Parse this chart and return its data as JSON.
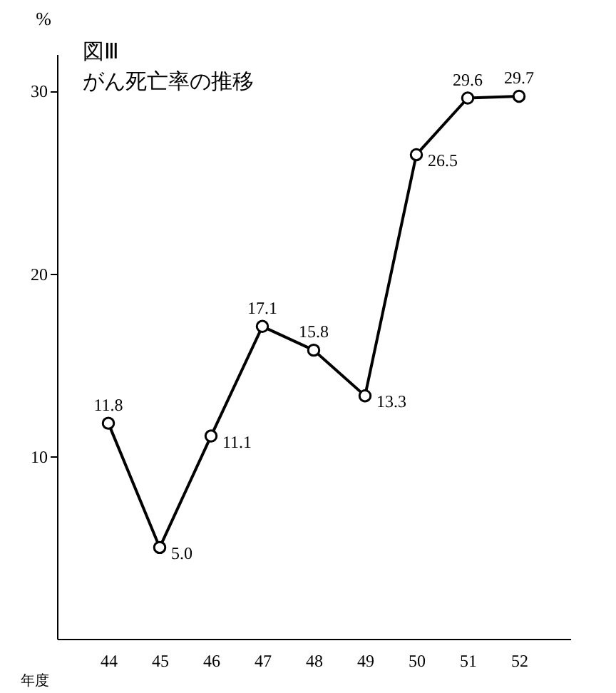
{
  "chart_data": {
    "type": "line",
    "title": "図Ⅲ",
    "subtitle": "がん死亡率の推移",
    "xlabel": "年度",
    "ylabel": "%",
    "categories": [
      "44",
      "45",
      "46",
      "47",
      "48",
      "49",
      "50",
      "51",
      "52"
    ],
    "values": [
      11.8,
      5.0,
      11.1,
      17.1,
      15.8,
      13.3,
      26.5,
      29.6,
      29.7
    ],
    "value_labels": [
      "11.8",
      "5.0",
      "11.1",
      "17.1",
      "15.8",
      "13.3",
      "26.5",
      "29.6",
      "29.7"
    ],
    "color": "#000000",
    "ylim": [
      0,
      32
    ],
    "yticks": [
      10,
      20,
      30
    ],
    "grid": false,
    "marker": "circle",
    "line_style": "solid"
  }
}
